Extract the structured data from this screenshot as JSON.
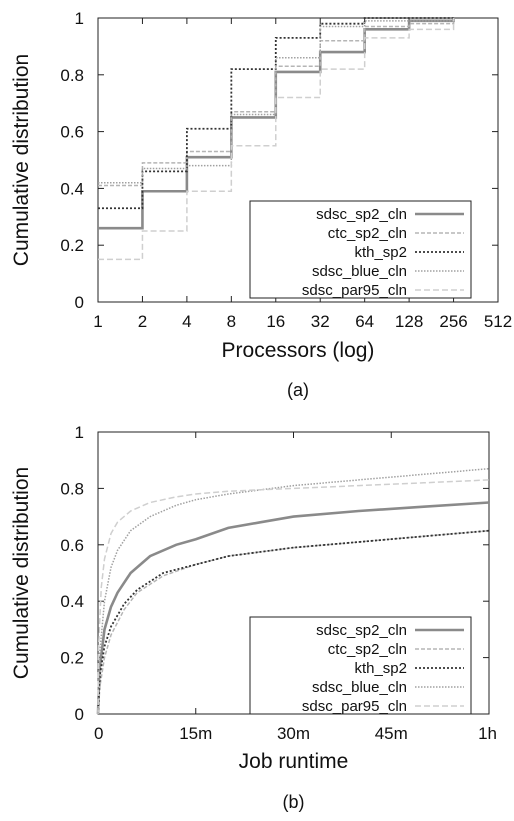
{
  "chart_data": [
    {
      "type": "line",
      "subcaption": "(a)",
      "xlabel": "Processors (log)",
      "ylabel": "Cumulative distribution",
      "x_scale": "log2",
      "x_ticks": [
        "1",
        "2",
        "4",
        "8",
        "16",
        "32",
        "64",
        "128",
        "256",
        "512"
      ],
      "y_ticks": [
        "0",
        "0.2",
        "0.4",
        "0.6",
        "0.8",
        "1"
      ],
      "xlim": [
        1,
        512
      ],
      "ylim": [
        0,
        1
      ],
      "legend_position": "bottom-right",
      "series": [
        {
          "name": "sdsc_sp2_cln",
          "color": "#8a8a8a",
          "dash": "",
          "width": 2.6,
          "x": [
            1,
            2,
            4,
            8,
            16,
            32,
            64,
            128,
            256
          ],
          "y": [
            0.26,
            0.39,
            0.51,
            0.65,
            0.81,
            0.88,
            0.96,
            0.99,
            1.0
          ]
        },
        {
          "name": "ctc_sp2_cln",
          "color": "#b5b5b5",
          "dash": "4 2",
          "width": 1.5,
          "x": [
            1,
            2,
            4,
            8,
            16,
            32,
            64,
            128,
            256
          ],
          "y": [
            0.41,
            0.49,
            0.53,
            0.67,
            0.83,
            0.92,
            0.97,
            0.98,
            1.0
          ]
        },
        {
          "name": "kth_sp2",
          "color": "#333333",
          "dash": "2 2",
          "width": 1.8,
          "x": [
            1,
            2,
            4,
            8,
            16,
            32,
            64,
            128,
            256
          ],
          "y": [
            0.33,
            0.46,
            0.61,
            0.82,
            0.93,
            0.98,
            1.0,
            1.0,
            1.0
          ]
        },
        {
          "name": "sdsc_blue_cln",
          "color": "#a0a0a0",
          "dash": "1.5 1.5",
          "width": 1.5,
          "x": [
            1,
            2,
            4,
            8,
            16,
            32,
            64,
            128,
            256
          ],
          "y": [
            0.42,
            0.47,
            0.48,
            0.66,
            0.86,
            0.97,
            0.99,
            0.99,
            1.0
          ]
        },
        {
          "name": "sdsc_par95_cln",
          "color": "#cfcfcf",
          "dash": "6 3",
          "width": 1.5,
          "x": [
            1,
            2,
            4,
            8,
            16,
            32,
            64,
            128,
            256
          ],
          "y": [
            0.15,
            0.25,
            0.39,
            0.55,
            0.72,
            0.82,
            0.93,
            0.96,
            1.0
          ]
        }
      ]
    },
    {
      "type": "line",
      "subcaption": "(b)",
      "xlabel": "Job runtime",
      "ylabel": "Cumulative distribution",
      "x_ticks": [
        "0",
        "15m",
        "30m",
        "45m",
        "1h"
      ],
      "y_ticks": [
        "0",
        "0.2",
        "0.4",
        "0.6",
        "0.8",
        "1"
      ],
      "xlim": [
        0,
        60
      ],
      "ylim": [
        0,
        1
      ],
      "legend_position": "bottom-right",
      "series": [
        {
          "name": "sdsc_sp2_cln",
          "color": "#8a8a8a",
          "dash": "",
          "width": 2.6,
          "x": [
            0,
            0.2,
            1,
            2,
            3,
            5,
            8,
            12,
            15,
            20,
            25,
            30,
            40,
            50,
            60
          ],
          "y": [
            0,
            0.15,
            0.3,
            0.38,
            0.43,
            0.5,
            0.56,
            0.6,
            0.62,
            0.66,
            0.68,
            0.7,
            0.72,
            0.735,
            0.75
          ]
        },
        {
          "name": "ctc_sp2_cln",
          "color": "#b5b5b5",
          "dash": "4 2",
          "width": 1.5,
          "x": [
            0,
            0.3,
            1,
            2,
            4,
            6,
            10,
            15,
            20,
            30,
            40,
            50,
            60
          ],
          "y": [
            0,
            0.1,
            0.2,
            0.28,
            0.37,
            0.43,
            0.49,
            0.53,
            0.56,
            0.59,
            0.61,
            0.63,
            0.65
          ]
        },
        {
          "name": "kth_sp2",
          "color": "#333333",
          "dash": "2 2",
          "width": 1.8,
          "x": [
            0,
            0.3,
            1,
            2,
            4,
            6,
            10,
            15,
            20,
            30,
            40,
            50,
            60
          ],
          "y": [
            0,
            0.14,
            0.24,
            0.31,
            0.39,
            0.44,
            0.5,
            0.53,
            0.56,
            0.59,
            0.61,
            0.63,
            0.65
          ]
        },
        {
          "name": "sdsc_blue_cln",
          "color": "#a0a0a0",
          "dash": "1.5 1.5",
          "width": 1.5,
          "x": [
            0,
            0.2,
            1,
            2,
            3,
            5,
            8,
            12,
            15,
            20,
            30,
            40,
            50,
            60
          ],
          "y": [
            0,
            0.2,
            0.4,
            0.52,
            0.58,
            0.65,
            0.7,
            0.74,
            0.76,
            0.78,
            0.81,
            0.83,
            0.85,
            0.87
          ]
        },
        {
          "name": "sdsc_par95_cln",
          "color": "#cfcfcf",
          "dash": "6 3",
          "width": 1.5,
          "x": [
            0,
            0.1,
            0.5,
            1,
            2,
            3,
            5,
            8,
            12,
            15,
            20,
            30,
            40,
            50,
            60
          ],
          "y": [
            0,
            0.25,
            0.45,
            0.55,
            0.64,
            0.68,
            0.72,
            0.75,
            0.77,
            0.78,
            0.79,
            0.8,
            0.81,
            0.82,
            0.83
          ]
        }
      ]
    }
  ]
}
